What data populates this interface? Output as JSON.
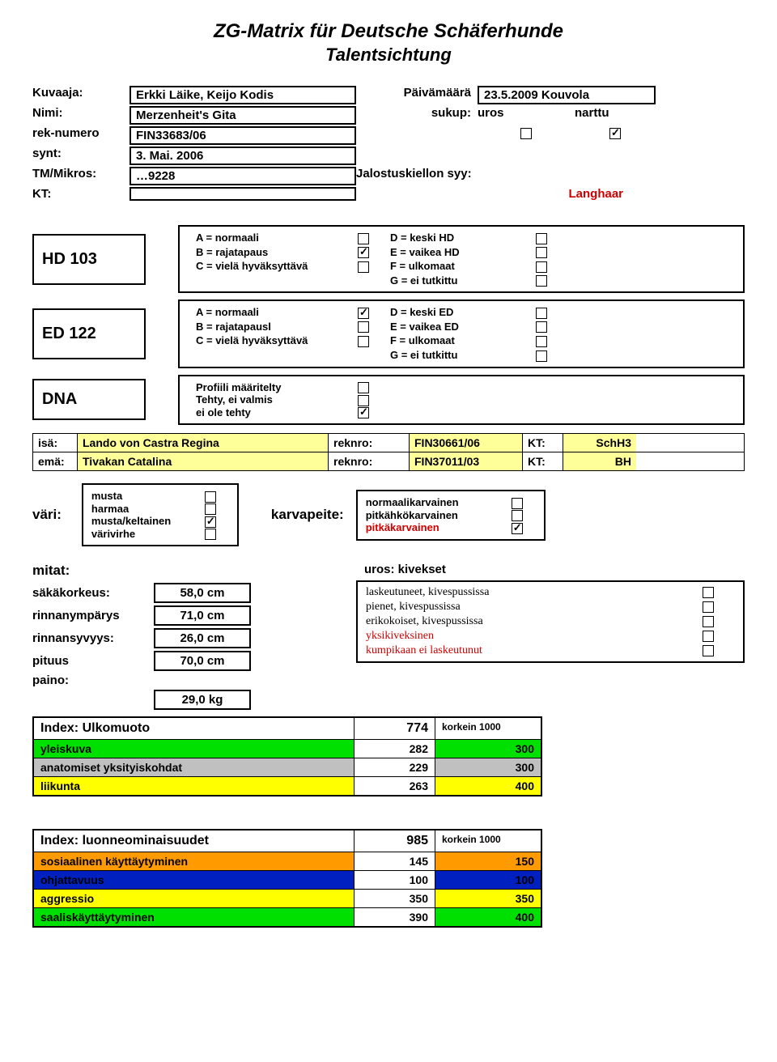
{
  "title": "ZG-Matrix für Deutsche Schäferhunde",
  "subtitle": "Talentsichtung",
  "header": {
    "labels": {
      "kuvaaja": "Kuvaaja:",
      "nimi": "Nimi:",
      "reknumero": "rek-numero",
      "synt": "synt:",
      "tm": "TM/Mikros:",
      "kt": "KT:",
      "paivamaara": "Päivämäärä",
      "sukup": "sukup:",
      "jalostus": "Jalostuskiellon syy:"
    },
    "values": {
      "kuvaaja": "Erkki Läike, Keijo Kodis",
      "nimi": "Merzenheit's Gita",
      "reknumero": "FIN33683/06",
      "synt": "3. Mai. 2006",
      "tm": "…9228",
      "paivamaara": "23.5.2009 Kouvola",
      "sukup_uros": "uros",
      "sukup_narttu": "narttu",
      "langhaar": "Langhaar"
    }
  },
  "hd": {
    "label": "HD 103",
    "opts": [
      {
        "l": "A = normaali",
        "r": "D = keski HD",
        "lc": false,
        "rc": false
      },
      {
        "l": "B = rajatapaus",
        "r": "E = vaikea HD",
        "lc": true,
        "rc": false
      },
      {
        "l": "C = vielä hyväksyttävä",
        "r": "F = ulkomaat",
        "lc": false,
        "rc": false
      },
      {
        "l": "",
        "r": "G = ei tutkittu",
        "lc": null,
        "rc": false
      }
    ]
  },
  "ed": {
    "label": "ED 122",
    "opts": [
      {
        "l": "A = normaali",
        "r": "D = keski ED",
        "lc": true,
        "rc": false
      },
      {
        "l": "B = rajatapausl",
        "r": "E = vaikea ED",
        "lc": false,
        "rc": false
      },
      {
        "l": "C = vielä hyväksyttävä",
        "r": "F = ulkomaat",
        "lc": false,
        "rc": false
      },
      {
        "l": "",
        "r": "G = ei tutkittu",
        "lc": null,
        "rc": false
      }
    ]
  },
  "dna": {
    "label": "DNA",
    "opts": [
      {
        "l": "Profiili määritelty",
        "c": false
      },
      {
        "l": "Tehty, ei valmis",
        "c": false
      },
      {
        "l": "ei ole tehty",
        "c": true
      }
    ]
  },
  "parents": {
    "isa_label": "isä:",
    "isa_name": "Lando von Castra Regina",
    "isa_rek_label": "reknro:",
    "isa_rek": "FIN30661/06",
    "isa_kt_label": "KT:",
    "isa_kt": "SchH3",
    "ema_label": "emä:",
    "ema_name": "Tivakan Catalina",
    "ema_rek_label": "reknro:",
    "ema_rek": "FIN37011/03",
    "ema_kt_label": "KT:",
    "ema_kt": "BH"
  },
  "color": {
    "label": "väri:",
    "opts": [
      {
        "l": "musta",
        "c": false
      },
      {
        "l": "harmaa",
        "c": false
      },
      {
        "l": "musta/keltainen",
        "c": true
      },
      {
        "l": "värivirhe",
        "c": false
      }
    ]
  },
  "coat": {
    "label": "karvapeite:",
    "opts": [
      {
        "l": "normaalikarvainen",
        "c": false,
        "red": false
      },
      {
        "l": "pitkähkökarvainen",
        "c": false,
        "red": false
      },
      {
        "l": "pitkäkarvainen",
        "c": true,
        "red": true
      }
    ]
  },
  "mitat": {
    "title": "mitat:",
    "rows": [
      {
        "l": "säkäkorkeus:",
        "v": "58,0  cm"
      },
      {
        "l": "rinnanympärys",
        "v": "71,0  cm"
      },
      {
        "l": "rinnansyvyys:",
        "v": "26,0  cm"
      },
      {
        "l": "pituus",
        "v": "70,0  cm"
      },
      {
        "l": "paino:",
        "v": ""
      },
      {
        "l": "",
        "v": "29,0  kg"
      }
    ],
    "testis_title": "uros: kivekset",
    "testis": [
      {
        "l": "laskeutuneet, kivespussissa",
        "c": false,
        "red": false
      },
      {
        "l": "pienet, kivespussissa",
        "c": false,
        "red": false
      },
      {
        "l": "erikokoiset, kivespussissa",
        "c": false,
        "red": false
      },
      {
        "l": "yksikiveksinen",
        "c": false,
        "red": true
      },
      {
        "l": "kumpikaan ei laskeutunut",
        "c": false,
        "red": true
      }
    ]
  },
  "index1": {
    "title": "Index:  Ulkomuoto",
    "score": "774",
    "max": "korkein 1000",
    "rows": [
      {
        "l": "yleiskuva",
        "v": "282",
        "m": "300",
        "cls": "bg-green"
      },
      {
        "l": "anatomiset yksityiskohdat",
        "v": "229",
        "m": "300",
        "cls": "bg-grey"
      },
      {
        "l": "liikunta",
        "v": "263",
        "m": "400",
        "cls": "bg-yellow"
      }
    ]
  },
  "index2": {
    "title": "Index: luonneominaisuudet",
    "score": "985",
    "max": "korkein 1000",
    "rows": [
      {
        "l": "sosiaalinen käyttäytyminen",
        "v": "145",
        "m": "150",
        "cls": "bg-orange"
      },
      {
        "l": "ohjattavuus",
        "v": "100",
        "m": "100",
        "cls": "bg-blue"
      },
      {
        "l": "aggressio",
        "v": "350",
        "m": "350",
        "cls": "bg-yellow"
      },
      {
        "l": "saaliskäyttäytyminen",
        "v": "390",
        "m": "400",
        "cls": "bg-green"
      }
    ]
  }
}
